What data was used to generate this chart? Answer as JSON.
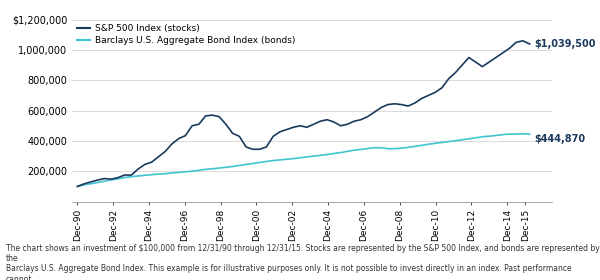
{
  "title": "",
  "stocks_label": "S&P 500 Index (stocks)",
  "bonds_label": "Barclays U.S. Aggregate Bond Index (bonds)",
  "stocks_color": "#1a3a5c",
  "bonds_color": "#40c4d0",
  "stocks_end_label": "$1,039,500",
  "bonds_end_label": "$444,870",
  "ylim": [
    0,
    1200000
  ],
  "yticks": [
    0,
    200000,
    400000,
    600000,
    800000,
    1000000,
    1200000
  ],
  "ytick_labels": [
    "",
    "200,000",
    "400,000",
    "600,000",
    "800,000",
    "1,000,000",
    "$1,200,000"
  ],
  "xtick_labels": [
    "Dec-90",
    "Dec-92",
    "Dec-94",
    "Dec-96",
    "Dec-98",
    "Dec-00",
    "Dec-02",
    "Dec-04",
    "Dec-06",
    "Dec-08",
    "Dec-10",
    "Dec-12",
    "Dec-14",
    "Dec-15"
  ],
  "footnote": "The chart shows an investment of $100,000 from 12/31/90 through 12/31/15. Stocks are represented by the S&P 500 Index, and bonds are represented by the\nBarclays U.S. Aggregate Bond Index. This example is for illustrative purposes only. It is not possible to invest directly in an index. Past performance cannot\nguarantee future results.",
  "bg_color": "#ffffff",
  "grid_color": "#cccccc",
  "stocks_data": [
    100000,
    117000,
    130000,
    142000,
    152000,
    148000,
    158000,
    175000,
    175000,
    215000,
    245000,
    260000,
    295000,
    330000,
    380000,
    415000,
    435000,
    500000,
    510000,
    565000,
    570000,
    560000,
    510000,
    450000,
    430000,
    360000,
    345000,
    345000,
    360000,
    430000,
    460000,
    475000,
    490000,
    500000,
    490000,
    510000,
    530000,
    540000,
    525000,
    500000,
    510000,
    530000,
    540000,
    560000,
    590000,
    620000,
    640000,
    645000,
    640000,
    630000,
    650000,
    680000,
    700000,
    720000,
    750000,
    810000,
    850000,
    900000,
    950000,
    920000,
    890000,
    920000,
    950000,
    980000,
    1010000,
    1050000,
    1060000,
    1039500
  ],
  "bonds_data": [
    100000,
    112000,
    120000,
    130000,
    140000,
    148000,
    158000,
    165000,
    170000,
    175000,
    180000,
    183000,
    188000,
    193000,
    197000,
    202000,
    210000,
    215000,
    220000,
    226000,
    232000,
    240000,
    248000,
    255000,
    263000,
    270000,
    275000,
    280000,
    285000,
    292000,
    298000,
    304000,
    310000,
    318000,
    325000,
    335000,
    342000,
    348000,
    355000,
    355000,
    348000,
    350000,
    355000,
    362000,
    370000,
    378000,
    385000,
    392000,
    398000,
    405000,
    412000,
    420000,
    428000,
    432000,
    438000,
    444000,
    445000,
    447000,
    444870
  ]
}
